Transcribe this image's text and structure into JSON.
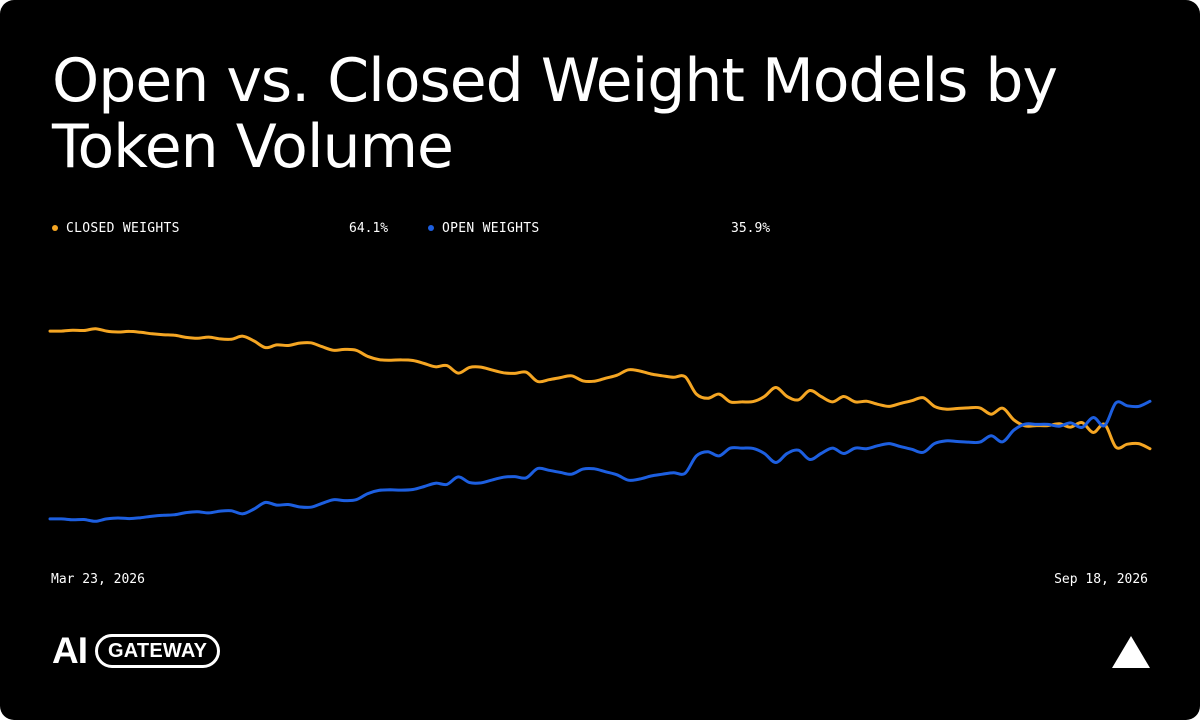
{
  "title": "Open vs. Closed Weight Models by Token Volume",
  "legend": {
    "closed": {
      "label": "CLOSED WEIGHTS",
      "value": "64.1%",
      "color": "#f5a623"
    },
    "open": {
      "label": "OPEN WEIGHTS",
      "value": "35.9%",
      "color": "#1d5fe0"
    }
  },
  "x_axis": {
    "start_label": "Mar 23, 2026",
    "end_label": "Sep 18, 2026"
  },
  "logo": {
    "ai": "AI",
    "pill": "GATEWAY"
  },
  "chart_data": {
    "type": "line",
    "title": "Open vs. Closed Weight Models by Token Volume",
    "x_start": "Mar 23, 2026",
    "x_end": "Sep 18, 2026",
    "ylim": [
      0,
      100
    ],
    "grid": false,
    "legend_position": "top-left",
    "series": [
      {
        "name": "CLOSED WEIGHTS",
        "color": "#f5a623",
        "values": [
          81.3,
          81.3,
          81.6,
          81.5,
          82.1,
          81.3,
          81.0,
          81.2,
          80.9,
          80.4,
          80.1,
          79.9,
          79.2,
          78.9,
          79.3,
          78.7,
          78.6,
          79.6,
          78.0,
          75.8,
          76.7,
          76.5,
          77.3,
          77.4,
          76.1,
          74.9,
          75.2,
          74.9,
          72.9,
          71.8,
          71.6,
          71.7,
          71.5,
          70.5,
          69.4,
          69.8,
          67.3,
          69.2,
          69.3,
          68.3,
          67.4,
          67.2,
          67.6,
          64.5,
          65.1,
          65.8,
          66.4,
          64.7,
          64.6,
          65.6,
          66.6,
          68.4,
          68.0,
          67.0,
          66.4,
          65.9,
          66.1,
          60.3,
          58.9,
          60.3,
          57.7,
          57.7,
          57.8,
          59.5,
          62.5,
          59.5,
          58.4,
          61.5,
          59.5,
          57.7,
          59.5,
          57.7,
          57.9,
          56.9,
          56.2,
          57.2,
          58.1,
          59.1,
          56.2,
          55.3,
          55.5,
          55.7,
          55.7,
          53.6,
          55.6,
          51.7,
          49.7,
          49.8,
          49.8,
          50.4,
          49.3,
          50.8,
          47.5,
          50.2,
          42.6,
          43.6,
          43.8,
          42.1
        ]
      },
      {
        "name": "OPEN WEIGHTS",
        "color": "#1d5fe0",
        "values": [
          18.7,
          18.7,
          18.4,
          18.5,
          17.9,
          18.7,
          19.0,
          18.8,
          19.1,
          19.6,
          19.9,
          20.1,
          20.8,
          21.1,
          20.7,
          21.3,
          21.4,
          20.4,
          22.0,
          24.2,
          23.3,
          23.5,
          22.7,
          22.6,
          23.9,
          25.1,
          24.8,
          25.1,
          27.1,
          28.2,
          28.4,
          28.3,
          28.5,
          29.5,
          30.6,
          30.2,
          32.7,
          30.8,
          30.7,
          31.7,
          32.6,
          32.8,
          32.4,
          35.5,
          34.9,
          34.2,
          33.6,
          35.3,
          35.4,
          34.4,
          33.4,
          31.6,
          32.0,
          33.0,
          33.6,
          34.1,
          33.9,
          39.7,
          41.1,
          39.7,
          42.3,
          42.3,
          42.2,
          40.5,
          37.5,
          40.5,
          41.6,
          38.5,
          40.5,
          42.3,
          40.5,
          42.3,
          42.1,
          43.1,
          43.8,
          42.8,
          41.9,
          40.9,
          43.8,
          44.7,
          44.5,
          44.3,
          44.3,
          46.4,
          44.4,
          48.3,
          50.3,
          50.2,
          50.2,
          49.6,
          50.7,
          49.2,
          52.5,
          49.8,
          57.4,
          56.4,
          56.2,
          57.9
        ]
      }
    ]
  }
}
